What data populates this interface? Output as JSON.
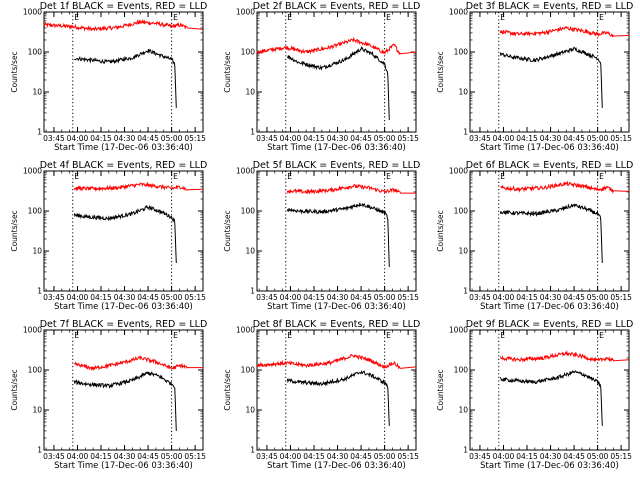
{
  "figure": {
    "xlabel": "Start Time (17-Dec-06 03:36:40)",
    "ylabel": "Counts/sec",
    "marker_label": "E",
    "colors": {
      "events": "#000000",
      "lld": "#ff0000",
      "axes": "#000000",
      "background": "#ffffff"
    }
  },
  "chart_data": [
    {
      "type": "line",
      "title": "Det 1f BLACK = Events, RED = LLD",
      "xlim": [
        "03:38:40",
        "05:20:00"
      ],
      "ylim": [
        1,
        1000
      ],
      "yscale": "log",
      "xticks": [
        "03:45",
        "04:00",
        "04:15",
        "04:30",
        "04:45",
        "05:00",
        "05:15"
      ],
      "yticks": [
        "1",
        "10",
        "100",
        "1000"
      ],
      "event_markers": [
        "03:57",
        "05:00"
      ],
      "series": [
        {
          "name": "LLD",
          "color": "#ff0000",
          "start": "03:38:40",
          "end": "05:20:00",
          "points": [
            [
              "03:39",
              480
            ],
            [
              "03:57",
              430
            ],
            [
              "04:10",
              370
            ],
            [
              "04:25",
              410
            ],
            [
              "04:40",
              560
            ],
            [
              "04:50",
              520
            ],
            [
              "05:00",
              440
            ],
            [
              "05:06",
              470
            ],
            [
              "05:10",
              400
            ],
            [
              "05:20",
              370
            ]
          ]
        },
        {
          "name": "Events",
          "color": "#000000",
          "start": "03:58",
          "end": "05:03",
          "points": [
            [
              "03:58",
              70
            ],
            [
              "04:05",
              65
            ],
            [
              "04:20",
              56
            ],
            [
              "04:35",
              72
            ],
            [
              "04:45",
              110
            ],
            [
              "04:52",
              85
            ],
            [
              "05:00",
              65
            ],
            [
              "05:02",
              50
            ],
            [
              "05:03",
              4
            ]
          ]
        }
      ]
    },
    {
      "type": "line",
      "title": "Det 2f BLACK = Events, RED = LLD",
      "xlim": [
        "03:38:40",
        "05:20:00"
      ],
      "ylim": [
        1,
        1000
      ],
      "yscale": "log",
      "xticks": [
        "03:45",
        "04:00",
        "04:15",
        "04:30",
        "04:45",
        "05:00",
        "05:15"
      ],
      "yticks": [
        "1",
        "10",
        "100",
        "1000"
      ],
      "event_markers": [
        "03:57",
        "05:00"
      ],
      "series": [
        {
          "name": "LLD",
          "color": "#ff0000",
          "start": "03:38:40",
          "end": "05:20:00",
          "points": [
            [
              "03:39",
              100
            ],
            [
              "03:57",
              130
            ],
            [
              "04:10",
              100
            ],
            [
              "04:25",
              130
            ],
            [
              "04:40",
              200
            ],
            [
              "04:50",
              150
            ],
            [
              "05:00",
              95
            ],
            [
              "05:06",
              150
            ],
            [
              "05:10",
              90
            ],
            [
              "05:20",
              100
            ]
          ]
        },
        {
          "name": "Events",
          "color": "#000000",
          "start": "03:58",
          "end": "05:03",
          "points": [
            [
              "03:58",
              80
            ],
            [
              "04:05",
              55
            ],
            [
              "04:20",
              40
            ],
            [
              "04:35",
              65
            ],
            [
              "04:45",
              120
            ],
            [
              "04:52",
              90
            ],
            [
              "05:00",
              50
            ],
            [
              "05:02",
              30
            ],
            [
              "05:03",
              2
            ]
          ]
        }
      ]
    },
    {
      "type": "line",
      "title": "Det 3f BLACK = Events, RED = LLD",
      "xlim": [
        "03:38:40",
        "05:20:00"
      ],
      "ylim": [
        1,
        1000
      ],
      "yscale": "log",
      "xticks": [
        "03:45",
        "04:00",
        "04:15",
        "04:30",
        "04:45",
        "05:00",
        "05:15"
      ],
      "yticks": [
        "1",
        "10",
        "100",
        "1000"
      ],
      "event_markers": [
        "03:57",
        "05:00"
      ],
      "series": [
        {
          "name": "LLD",
          "color": "#ff0000",
          "start": "03:58",
          "end": "05:20:00",
          "points": [
            [
              "03:58",
              320
            ],
            [
              "04:10",
              280
            ],
            [
              "04:25",
              300
            ],
            [
              "04:40",
              400
            ],
            [
              "04:50",
              340
            ],
            [
              "05:00",
              280
            ],
            [
              "05:06",
              300
            ],
            [
              "05:10",
              250
            ],
            [
              "05:20",
              260
            ]
          ]
        },
        {
          "name": "Events",
          "color": "#000000",
          "start": "03:58",
          "end": "05:03",
          "points": [
            [
              "03:58",
              90
            ],
            [
              "04:05",
              75
            ],
            [
              "04:20",
              62
            ],
            [
              "04:35",
              90
            ],
            [
              "04:45",
              120
            ],
            [
              "04:52",
              95
            ],
            [
              "05:00",
              70
            ],
            [
              "05:02",
              55
            ],
            [
              "05:03",
              4
            ]
          ]
        }
      ]
    },
    {
      "type": "line",
      "title": "Det 4f BLACK = Events, RED = LLD",
      "xlim": [
        "03:38:40",
        "05:20:00"
      ],
      "ylim": [
        1,
        1000
      ],
      "yscale": "log",
      "xticks": [
        "03:45",
        "04:00",
        "04:15",
        "04:30",
        "04:45",
        "05:00",
        "05:15"
      ],
      "yticks": [
        "1",
        "10",
        "100",
        "1000"
      ],
      "event_markers": [
        "03:57",
        "05:00"
      ],
      "series": [
        {
          "name": "LLD",
          "color": "#ff0000",
          "start": "03:58",
          "end": "05:20:00",
          "points": [
            [
              "03:58",
              370
            ],
            [
              "04:10",
              360
            ],
            [
              "04:25",
              380
            ],
            [
              "04:40",
              460
            ],
            [
              "04:50",
              420
            ],
            [
              "05:00",
              370
            ],
            [
              "05:06",
              400
            ],
            [
              "05:10",
              340
            ],
            [
              "05:20",
              350
            ]
          ]
        },
        {
          "name": "Events",
          "color": "#000000",
          "start": "03:58",
          "end": "05:03",
          "points": [
            [
              "03:58",
              80
            ],
            [
              "04:05",
              72
            ],
            [
              "04:20",
              65
            ],
            [
              "04:35",
              85
            ],
            [
              "04:45",
              125
            ],
            [
              "04:52",
              100
            ],
            [
              "05:00",
              70
            ],
            [
              "05:02",
              55
            ],
            [
              "05:03",
              5
            ]
          ]
        }
      ]
    },
    {
      "type": "line",
      "title": "Det 5f BLACK = Events, RED = LLD",
      "xlim": [
        "03:38:40",
        "05:20:00"
      ],
      "ylim": [
        1,
        1000
      ],
      "yscale": "log",
      "xticks": [
        "03:45",
        "04:00",
        "04:15",
        "04:30",
        "04:45",
        "05:00",
        "05:15"
      ],
      "yticks": [
        "1",
        "10",
        "100",
        "1000"
      ],
      "event_markers": [
        "03:57",
        "05:00"
      ],
      "series": [
        {
          "name": "LLD",
          "color": "#ff0000",
          "start": "03:58",
          "end": "05:20:00",
          "points": [
            [
              "03:58",
              320
            ],
            [
              "04:10",
              300
            ],
            [
              "04:25",
              330
            ],
            [
              "04:40",
              420
            ],
            [
              "04:50",
              380
            ],
            [
              "05:00",
              300
            ],
            [
              "05:06",
              340
            ],
            [
              "05:10",
              280
            ],
            [
              "05:20",
              280
            ]
          ]
        },
        {
          "name": "Events",
          "color": "#000000",
          "start": "03:58",
          "end": "05:03",
          "points": [
            [
              "03:58",
              110
            ],
            [
              "04:05",
              100
            ],
            [
              "04:20",
              95
            ],
            [
              "04:35",
              115
            ],
            [
              "04:45",
              150
            ],
            [
              "04:52",
              120
            ],
            [
              "05:00",
              90
            ],
            [
              "05:02",
              70
            ],
            [
              "05:03",
              4
            ]
          ]
        }
      ]
    },
    {
      "type": "line",
      "title": "Det 6f BLACK = Events, RED = LLD",
      "xlim": [
        "03:38:40",
        "05:20:00"
      ],
      "ylim": [
        1,
        1000
      ],
      "yscale": "log",
      "xticks": [
        "03:45",
        "04:00",
        "04:15",
        "04:30",
        "04:45",
        "05:00",
        "05:15"
      ],
      "yticks": [
        "1",
        "10",
        "100",
        "1000"
      ],
      "event_markers": [
        "03:57",
        "05:00"
      ],
      "series": [
        {
          "name": "LLD",
          "color": "#ff0000",
          "start": "03:58",
          "end": "05:20:00",
          "points": [
            [
              "03:58",
              380
            ],
            [
              "04:10",
              350
            ],
            [
              "04:25",
              380
            ],
            [
              "04:40",
              480
            ],
            [
              "04:50",
              420
            ],
            [
              "05:00",
              340
            ],
            [
              "05:06",
              390
            ],
            [
              "05:10",
              320
            ],
            [
              "05:20",
              310
            ]
          ]
        },
        {
          "name": "Events",
          "color": "#000000",
          "start": "03:58",
          "end": "05:03",
          "points": [
            [
              "03:58",
              95
            ],
            [
              "04:05",
              90
            ],
            [
              "04:20",
              85
            ],
            [
              "04:35",
              105
            ],
            [
              "04:45",
              140
            ],
            [
              "04:52",
              115
            ],
            [
              "05:00",
              85
            ],
            [
              "05:02",
              65
            ],
            [
              "05:03",
              5
            ]
          ]
        }
      ]
    },
    {
      "type": "line",
      "title": "Det 7f BLACK = Events, RED = LLD",
      "xlim": [
        "03:38:40",
        "05:20:00"
      ],
      "ylim": [
        1,
        1000
      ],
      "yscale": "log",
      "xticks": [
        "03:45",
        "04:00",
        "04:15",
        "04:30",
        "04:45",
        "05:00",
        "05:15"
      ],
      "yticks": [
        "1",
        "10",
        "100",
        "1000"
      ],
      "event_markers": [
        "03:57",
        "05:00"
      ],
      "series": [
        {
          "name": "LLD",
          "color": "#ff0000",
          "start": "03:58",
          "end": "05:20:00",
          "points": [
            [
              "03:58",
              140
            ],
            [
              "04:10",
              110
            ],
            [
              "04:25",
              140
            ],
            [
              "04:40",
              200
            ],
            [
              "04:50",
              160
            ],
            [
              "05:00",
              110
            ],
            [
              "05:06",
              130
            ],
            [
              "05:10",
              115
            ],
            [
              "05:20",
              115
            ]
          ]
        },
        {
          "name": "Events",
          "color": "#000000",
          "start": "03:58",
          "end": "05:03",
          "points": [
            [
              "03:58",
              50
            ],
            [
              "04:05",
              45
            ],
            [
              "04:20",
              40
            ],
            [
              "04:35",
              55
            ],
            [
              "04:45",
              85
            ],
            [
              "04:52",
              70
            ],
            [
              "05:00",
              45
            ],
            [
              "05:02",
              40
            ],
            [
              "05:03",
              3
            ]
          ]
        }
      ]
    },
    {
      "type": "line",
      "title": "Det 8f BLACK = Events, RED = LLD",
      "xlim": [
        "03:38:40",
        "05:20:00"
      ],
      "ylim": [
        1,
        1000
      ],
      "yscale": "log",
      "xticks": [
        "03:45",
        "04:00",
        "04:15",
        "04:30",
        "04:45",
        "05:00",
        "05:15"
      ],
      "yticks": [
        "1",
        "10",
        "100",
        "1000"
      ],
      "event_markers": [
        "03:57",
        "05:00"
      ],
      "series": [
        {
          "name": "LLD",
          "color": "#ff0000",
          "start": "03:38:40",
          "end": "05:20:00",
          "points": [
            [
              "03:39",
              130
            ],
            [
              "03:57",
              150
            ],
            [
              "04:10",
              130
            ],
            [
              "04:25",
              150
            ],
            [
              "04:40",
              230
            ],
            [
              "04:50",
              180
            ],
            [
              "05:00",
              120
            ],
            [
              "05:06",
              150
            ],
            [
              "05:10",
              110
            ],
            [
              "05:20",
              120
            ]
          ]
        },
        {
          "name": "Events",
          "color": "#000000",
          "start": "03:58",
          "end": "05:03",
          "points": [
            [
              "03:58",
              55
            ],
            [
              "04:05",
              50
            ],
            [
              "04:20",
              45
            ],
            [
              "04:35",
              60
            ],
            [
              "04:45",
              90
            ],
            [
              "04:52",
              72
            ],
            [
              "05:00",
              48
            ],
            [
              "05:02",
              40
            ],
            [
              "05:03",
              4
            ]
          ]
        }
      ]
    },
    {
      "type": "line",
      "title": "Det 9f BLACK = Events, RED = LLD",
      "xlim": [
        "03:38:40",
        "05:20:00"
      ],
      "ylim": [
        1,
        1000
      ],
      "yscale": "log",
      "xticks": [
        "03:45",
        "04:00",
        "04:15",
        "04:30",
        "04:45",
        "05:00",
        "05:15"
      ],
      "yticks": [
        "1",
        "10",
        "100",
        "1000"
      ],
      "event_markers": [
        "03:57",
        "05:00"
      ],
      "series": [
        {
          "name": "LLD",
          "color": "#ff0000",
          "start": "03:58",
          "end": "05:20:00",
          "points": [
            [
              "03:58",
              200
            ],
            [
              "04:10",
              180
            ],
            [
              "04:25",
              200
            ],
            [
              "04:40",
              260
            ],
            [
              "04:50",
              220
            ],
            [
              "05:00",
              170
            ],
            [
              "05:06",
              200
            ],
            [
              "05:10",
              170
            ],
            [
              "05:20",
              180
            ]
          ]
        },
        {
          "name": "Events",
          "color": "#000000",
          "start": "03:58",
          "end": "05:03",
          "points": [
            [
              "03:58",
              60
            ],
            [
              "04:05",
              55
            ],
            [
              "04:20",
              50
            ],
            [
              "04:35",
              65
            ],
            [
              "04:45",
              90
            ],
            [
              "04:52",
              75
            ],
            [
              "05:00",
              50
            ],
            [
              "05:02",
              40
            ],
            [
              "05:03",
              4
            ]
          ]
        }
      ]
    }
  ]
}
